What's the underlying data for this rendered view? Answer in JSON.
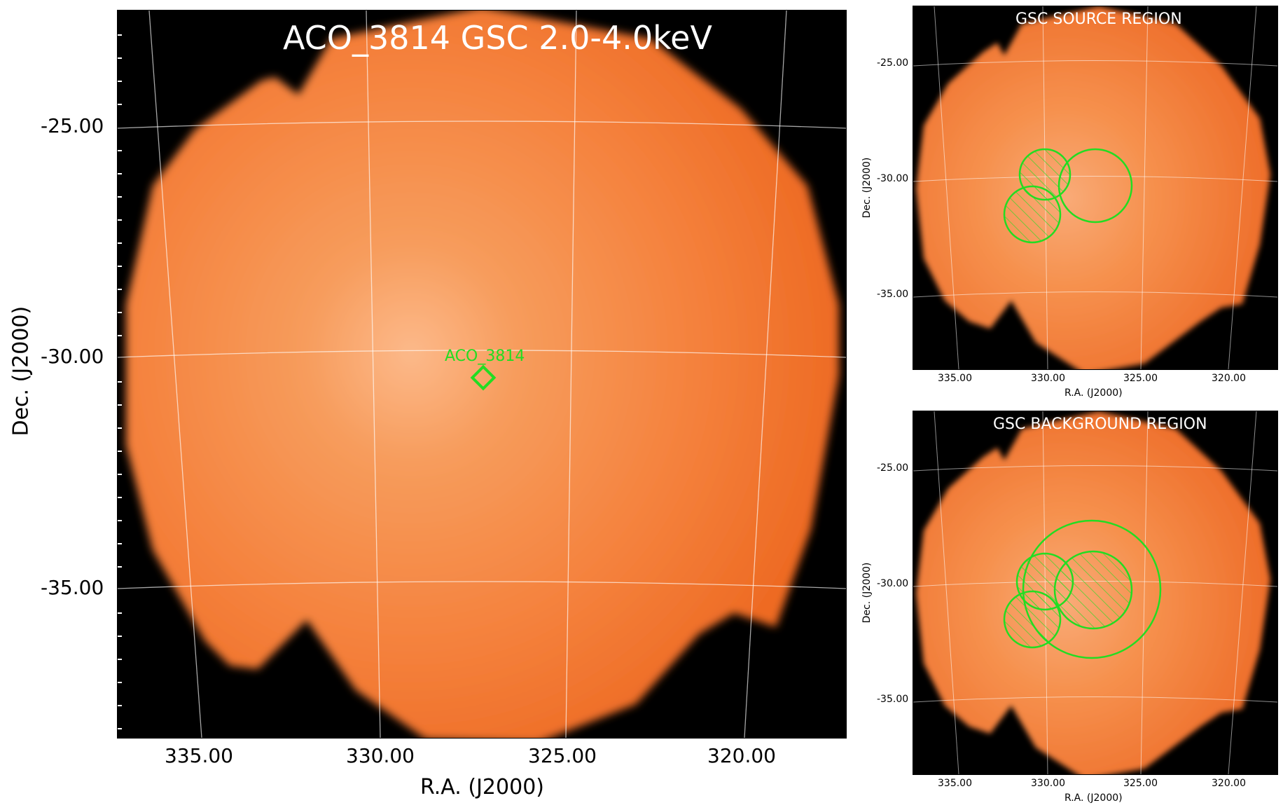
{
  "main_panel": {
    "title": "ACO_3814 GSC 2.0-4.0keV",
    "source_label": "ACO_3814",
    "ra_ticks": [
      "335.00",
      "330.00",
      "325.00",
      "320.00"
    ],
    "dec_ticks": [
      "-25.00",
      "-30.00",
      "-35.00"
    ],
    "xlabel": "R.A. (J2000)",
    "ylabel": "Dec. (J2000)"
  },
  "source_panel": {
    "title": "GSC SOURCE REGION",
    "ra_ticks": [
      "335.00",
      "330.00",
      "325.00",
      "320.00"
    ],
    "dec_ticks": [
      "-25.00",
      "-30.00",
      "-35.00"
    ],
    "xlabel": "R.A. (J2000)",
    "ylabel": "Dec. (J2000)"
  },
  "background_panel": {
    "title": "GSC BACKGROUND REGION",
    "ra_ticks": [
      "335.00",
      "330.00",
      "325.00",
      "320.00"
    ],
    "dec_ticks": [
      "-25.00",
      "-30.00",
      "-35.00"
    ],
    "xlabel": "R.A. (J2000)",
    "ylabel": "Dec. (J2000)"
  },
  "colors": {
    "image_orange": "#f57f36",
    "region_green": "#22dd22",
    "grid": "#ffffff"
  }
}
